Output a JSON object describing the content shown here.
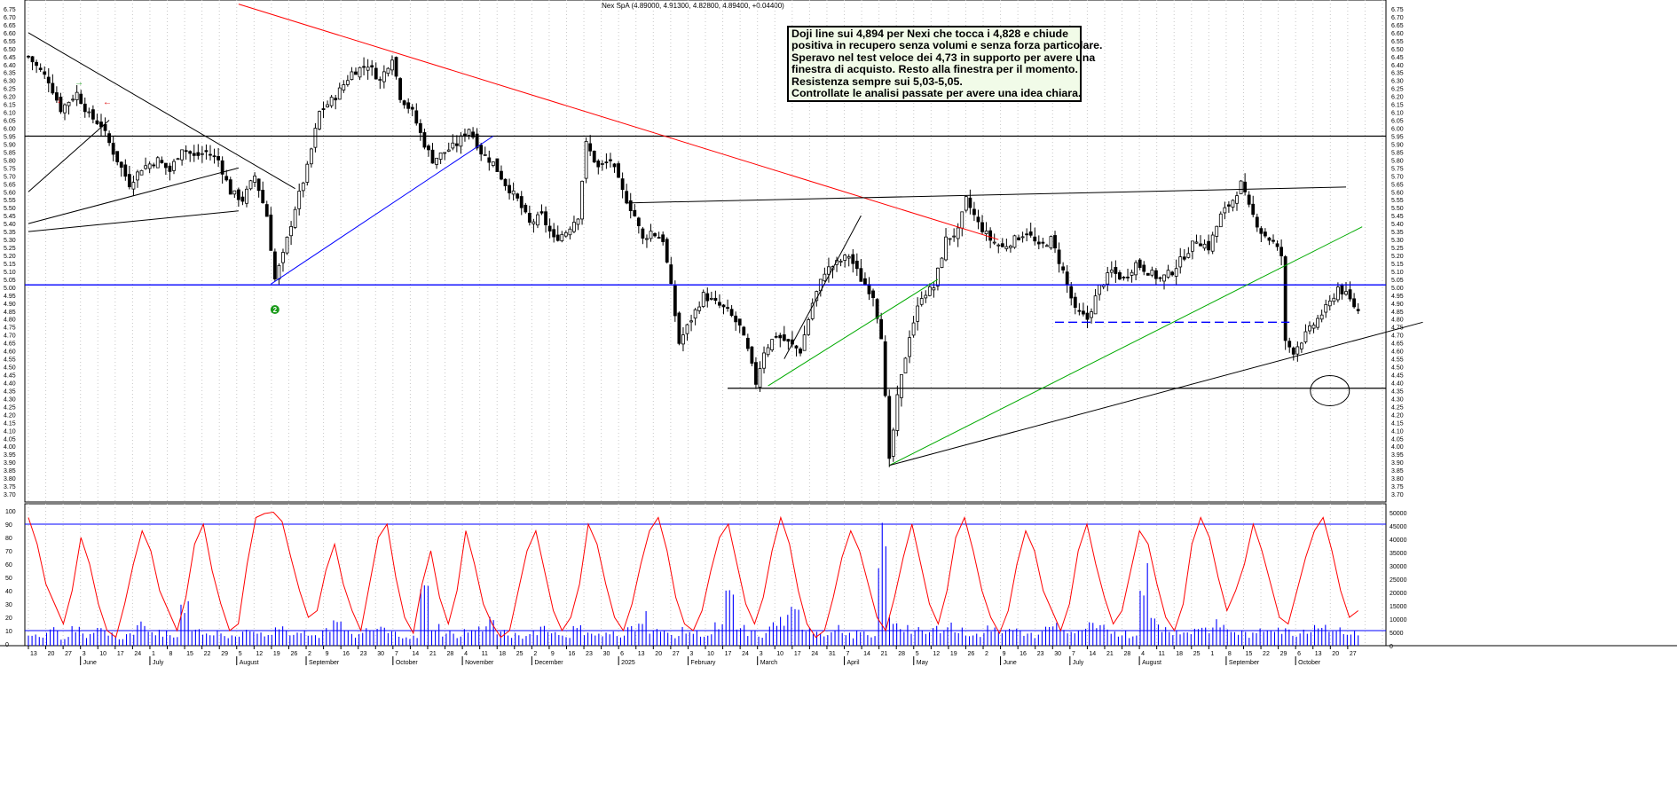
{
  "title": "Nex SpA (4.89000, 4.91300, 4.82800, 4.89400, +0.04400)",
  "annotation": [
    "Doji line sui 4,894 per Nexi che tocca i 4,828 e chiude",
    "positiva in recupero senza volumi e senza forza particolare.",
    "Speravo nel test veloce dei 4,73 in supporto per avere una",
    "finestra di acquisto. Resto alla finestra per il momento.",
    "Resistenza sempre sui 5,03-5,05.",
    "Controllate le analisi passate per avere una idea chiara."
  ],
  "marker_label": "2",
  "colors": {
    "candle": "#000000",
    "red_trendline": "#ff0000",
    "blue_trendline": "#0000ff",
    "green_trendline": "#00aa00",
    "oscillator": "#ff0000",
    "volume": "#0000ff",
    "annotation_bg": "#f1fbe8",
    "grid": "#c8c8c8"
  },
  "chart_data": [
    {
      "type": "candlestick",
      "title": "Nex SpA (4.89000, 4.91300, 4.82800, 4.89400, +0.04400)",
      "ylim": [
        3.65,
        6.75
      ],
      "y_ticks": [
        "6.75",
        "6.70",
        "6.65",
        "6.60",
        "6.55",
        "6.50",
        "6.45",
        "6.40",
        "6.35",
        "6.30",
        "6.25",
        "6.20",
        "6.15",
        "6.10",
        "6.05",
        "6.00",
        "5.95",
        "5.90",
        "5.85",
        "5.80",
        "5.75",
        "5.70",
        "5.65",
        "5.60",
        "5.55",
        "5.50",
        "5.45",
        "5.40",
        "5.35",
        "5.30",
        "5.25",
        "5.20",
        "5.15",
        "5.10",
        "5.05",
        "5.00",
        "4.95",
        "4.90",
        "4.85",
        "4.80",
        "4.75",
        "4.70",
        "4.65",
        "4.60",
        "4.55",
        "4.50",
        "4.45",
        "4.40",
        "4.35",
        "4.30",
        "4.25",
        "4.20",
        "4.15",
        "4.10",
        "4.05",
        "4.00",
        "3.95",
        "3.90",
        "3.85",
        "3.80",
        "3.75",
        "3.70"
      ],
      "close_path": [
        [
          0,
          6.45
        ],
        [
          5,
          6.3
        ],
        [
          8,
          6.12
        ],
        [
          12,
          6.22
        ],
        [
          15,
          6.08
        ],
        [
          18,
          6.02
        ],
        [
          21,
          5.85
        ],
        [
          25,
          5.65
        ],
        [
          28,
          5.75
        ],
        [
          32,
          5.8
        ],
        [
          35,
          5.73
        ],
        [
          38,
          5.88
        ],
        [
          41,
          5.82
        ],
        [
          44,
          5.85
        ],
        [
          47,
          5.8
        ],
        [
          50,
          5.6
        ],
        [
          53,
          5.55
        ],
        [
          56,
          5.7
        ],
        [
          59,
          5.45
        ],
        [
          61,
          5.05
        ],
        [
          63,
          5.2
        ],
        [
          66,
          5.5
        ],
        [
          69,
          5.75
        ],
        [
          72,
          6.1
        ],
        [
          76,
          6.2
        ],
        [
          80,
          6.35
        ],
        [
          84,
          6.4
        ],
        [
          87,
          6.3
        ],
        [
          90,
          6.45
        ],
        [
          92,
          6.2
        ],
        [
          95,
          6.1
        ],
        [
          98,
          5.9
        ],
        [
          100,
          5.8
        ],
        [
          103,
          5.85
        ],
        [
          106,
          5.9
        ],
        [
          109,
          6.0
        ],
        [
          112,
          5.85
        ],
        [
          115,
          5.78
        ],
        [
          118,
          5.65
        ],
        [
          121,
          5.55
        ],
        [
          124,
          5.4
        ],
        [
          127,
          5.45
        ],
        [
          130,
          5.3
        ],
        [
          133,
          5.35
        ],
        [
          136,
          5.45
        ],
        [
          138,
          5.9
        ],
        [
          141,
          5.75
        ],
        [
          144,
          5.8
        ],
        [
          147,
          5.6
        ],
        [
          150,
          5.45
        ],
        [
          152,
          5.3
        ],
        [
          154,
          5.35
        ],
        [
          157,
          5.3
        ],
        [
          159,
          5.0
        ],
        [
          161,
          4.65
        ],
        [
          164,
          4.8
        ],
        [
          167,
          4.95
        ],
        [
          170,
          4.9
        ],
        [
          173,
          4.85
        ],
        [
          176,
          4.75
        ],
        [
          178,
          4.6
        ],
        [
          180,
          4.4
        ],
        [
          182,
          4.6
        ],
        [
          185,
          4.7
        ],
        [
          188,
          4.65
        ],
        [
          191,
          4.6
        ],
        [
          194,
          4.9
        ],
        [
          197,
          5.1
        ],
        [
          200,
          5.15
        ],
        [
          203,
          5.2
        ],
        [
          206,
          5.05
        ],
        [
          209,
          4.95
        ],
        [
          211,
          4.7
        ],
        [
          213,
          3.9
        ],
        [
          215,
          4.3
        ],
        [
          218,
          4.7
        ],
        [
          221,
          4.95
        ],
        [
          224,
          5.0
        ],
        [
          227,
          5.3
        ],
        [
          230,
          5.35
        ],
        [
          232,
          5.55
        ],
        [
          235,
          5.4
        ],
        [
          238,
          5.3
        ],
        [
          241,
          5.25
        ],
        [
          244,
          5.3
        ],
        [
          247,
          5.35
        ],
        [
          250,
          5.25
        ],
        [
          253,
          5.3
        ],
        [
          256,
          5.1
        ],
        [
          259,
          4.85
        ],
        [
          262,
          4.8
        ],
        [
          265,
          5.0
        ],
        [
          268,
          5.1
        ],
        [
          271,
          5.05
        ],
        [
          274,
          5.15
        ],
        [
          277,
          5.1
        ],
        [
          280,
          5.05
        ],
        [
          283,
          5.1
        ],
        [
          286,
          5.2
        ],
        [
          289,
          5.3
        ],
        [
          292,
          5.25
        ],
        [
          295,
          5.45
        ],
        [
          298,
          5.55
        ],
        [
          300,
          5.65
        ],
        [
          302,
          5.5
        ],
        [
          305,
          5.35
        ],
        [
          308,
          5.28
        ],
        [
          310,
          5.2
        ],
        [
          311,
          4.65
        ],
        [
          313,
          4.6
        ],
        [
          316,
          4.7
        ],
        [
          319,
          4.8
        ],
        [
          322,
          4.9
        ],
        [
          324,
          5.0
        ],
        [
          326,
          4.95
        ],
        [
          329,
          4.85
        ]
      ],
      "trendlines": [
        {
          "color": "#ff0000",
          "from": [
            52,
            6.78
          ],
          "to": [
            240,
            5.3
          ]
        },
        {
          "color": "#0000ff",
          "from": [
            60,
            5.02
          ],
          "to": [
            115,
            5.95
          ]
        },
        {
          "color": "#00aa00",
          "from": [
            183,
            4.38
          ],
          "to": [
            225,
            5.05
          ]
        },
        {
          "color": "#00aa00",
          "from": [
            213,
            3.88
          ],
          "to": [
            330,
            5.38
          ]
        },
        {
          "color": "#000000",
          "from": [
            213,
            3.88
          ],
          "to": [
            345,
            4.78
          ]
        },
        {
          "color": "#000000",
          "from": [
            148,
            5.53
          ],
          "to": [
            326,
            5.63
          ]
        },
        {
          "color": "#000000",
          "from": [
            0,
            6.6
          ],
          "to": [
            66,
            5.62
          ]
        },
        {
          "color": "#000000",
          "from": [
            0,
            5.6
          ],
          "to": [
            20,
            6.05
          ]
        },
        {
          "color": "#000000",
          "from": [
            0,
            5.4
          ],
          "to": [
            52,
            5.75
          ]
        },
        {
          "color": "#000000",
          "from": [
            0,
            5.35
          ],
          "to": [
            52,
            5.48
          ]
        },
        {
          "color": "#000000",
          "from": [
            187,
            4.55
          ],
          "to": [
            206,
            5.45
          ]
        }
      ],
      "horizontal_lines": [
        {
          "color": "#000000",
          "y": 5.95
        },
        {
          "color": "#0000ff",
          "y": 5.015
        },
        {
          "color": "#000000",
          "y": 4.365,
          "from_x": 173
        }
      ],
      "dashed_lines": [
        {
          "color": "#0000ff",
          "y": 4.78,
          "from_x": 254,
          "to_x": 312
        }
      ],
      "ellipse": {
        "x": 322,
        "y": 4.35
      }
    },
    {
      "type": "line",
      "ylim": [
        0,
        100
      ],
      "y_ticks": [
        "100",
        "90",
        "80",
        "70",
        "60",
        "50",
        "40",
        "30",
        "20",
        "10",
        "0"
      ],
      "series": [
        {
          "color": "#ff0000",
          "values": [
            95,
            75,
            45,
            30,
            15,
            40,
            80,
            60,
            30,
            10,
            5,
            30,
            60,
            85,
            70,
            40,
            25,
            10,
            35,
            75,
            90,
            55,
            30,
            10,
            15,
            60,
            95,
            98,
            99,
            92,
            65,
            40,
            20,
            25,
            55,
            75,
            45,
            25,
            10,
            45,
            80,
            90,
            50,
            20,
            8,
            45,
            70,
            35,
            15,
            40,
            85,
            60,
            30,
            15,
            5,
            10,
            40,
            70,
            85,
            55,
            25,
            10,
            20,
            45,
            90,
            75,
            45,
            20,
            10,
            30,
            60,
            85,
            95,
            70,
            35,
            15,
            10,
            25,
            55,
            80,
            90,
            60,
            30,
            15,
            35,
            70,
            95,
            75,
            40,
            15,
            5,
            10,
            35,
            65,
            85,
            70,
            45,
            20,
            10,
            35,
            65,
            90,
            60,
            30,
            15,
            40,
            80,
            95,
            70,
            40,
            20,
            8,
            25,
            60,
            85,
            70,
            40,
            25,
            10,
            30,
            70,
            90,
            60,
            35,
            15,
            25,
            55,
            85,
            75,
            45,
            20,
            10,
            30,
            75,
            95,
            80,
            50,
            25,
            40,
            60,
            90,
            70,
            45,
            20,
            15,
            40,
            65,
            85,
            95,
            70,
            40,
            20,
            25
          ]
        }
      ],
      "reference_lines": [
        90,
        10
      ]
    },
    {
      "type": "bar",
      "ylim": [
        0,
        50000
      ],
      "y_ticks": [
        "50000",
        "45000",
        "40000",
        "35000",
        "30000",
        "25000",
        "20000",
        "15000",
        "10000",
        "5000",
        "0"
      ],
      "series": [
        {
          "color": "#0000ff",
          "values": [
            6000,
            5000,
            7000,
            4000,
            9000,
            5000,
            8000,
            6000,
            4000,
            5000,
            10000,
            7000,
            6000,
            5000,
            20000,
            8000,
            6000,
            7000,
            4000,
            6000,
            9000,
            5000,
            7000,
            8000,
            5000,
            6000,
            4000,
            9000,
            11000,
            6000,
            5000,
            7000,
            8000,
            6000,
            5000,
            4000,
            25000,
            9000,
            6000,
            5000,
            7000,
            8000,
            12000,
            6000,
            5000,
            4000,
            7000,
            9000,
            6000,
            5000,
            8000,
            7000,
            5000,
            6000,
            4000,
            9000,
            14000,
            8000,
            6000,
            5000,
            7000,
            6000,
            5000,
            9000,
            22000,
            8000,
            6000,
            5000,
            10000,
            12000,
            15000,
            9000,
            7000,
            6000,
            8000,
            5000,
            6000,
            4000,
            48000,
            12000,
            9000,
            7000,
            6000,
            8000,
            10000,
            7000,
            6000,
            5000,
            9000,
            8000,
            7000,
            6000,
            5000,
            8000,
            10000,
            7000,
            6000,
            9000,
            8000,
            7000,
            6000,
            5000,
            34000,
            12000,
            8000,
            7000,
            6000,
            9000,
            8000,
            10000,
            7000,
            6000,
            5000,
            8000,
            9000,
            7000,
            6000,
            8000,
            10000,
            9000,
            7000,
            6000,
            5000
          ]
        }
      ]
    }
  ],
  "x_axis": {
    "days": [
      "13",
      "20",
      "27",
      "3",
      "10",
      "17",
      "24",
      "1",
      "8",
      "15",
      "22",
      "29",
      "5",
      "12",
      "19",
      "26",
      "2",
      "9",
      "16",
      "23",
      "30",
      "7",
      "14",
      "21",
      "28",
      "4",
      "11",
      "18",
      "25",
      "2",
      "9",
      "16",
      "23",
      "30",
      "6",
      "13",
      "20",
      "27",
      "3",
      "10",
      "17",
      "24",
      "3",
      "10",
      "17",
      "24",
      "31",
      "7",
      "14",
      "21",
      "28",
      "5",
      "12",
      "19",
      "26",
      "2",
      "9",
      "16",
      "23",
      "30",
      "7",
      "14",
      "21",
      "28",
      "4",
      "11",
      "18",
      "25",
      "1",
      "8",
      "15",
      "22",
      "29",
      "6",
      "13",
      "20",
      "27"
    ],
    "months": [
      "June",
      "July",
      "August",
      "September",
      "October",
      "November",
      "December",
      "2025",
      "February",
      "March",
      "April",
      "May",
      "June",
      "July",
      "August",
      "September",
      "October"
    ]
  }
}
